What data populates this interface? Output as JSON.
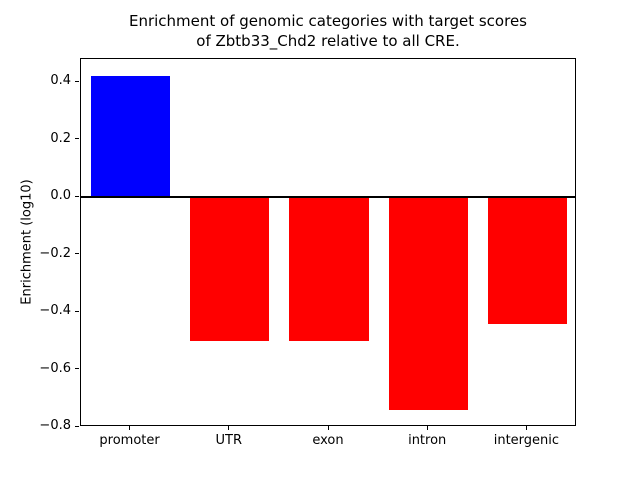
{
  "chart_data": {
    "type": "bar",
    "title": "Enrichment of genomic categories with target scores\nof Zbtb33_Chd2 relative to all CRE.",
    "xlabel": "",
    "ylabel": "Enrichment (log10)",
    "categories": [
      "promoter",
      "UTR",
      "exon",
      "intron",
      "intergenic"
    ],
    "values": [
      0.42,
      -0.5,
      -0.5,
      -0.74,
      -0.44
    ],
    "bar_colors": [
      "#0000ff",
      "#ff0000",
      "#ff0000",
      "#ff0000",
      "#ff0000"
    ],
    "ylim": [
      -0.8,
      0.48
    ],
    "yticks": [
      0.4,
      0.2,
      0.0,
      -0.2,
      -0.4,
      -0.6,
      -0.8
    ],
    "ytick_labels": [
      "0.4",
      "0.2",
      "0.0",
      "−0.2",
      "−0.4",
      "−0.6",
      "−0.8"
    ],
    "zero_line": true,
    "grid": false,
    "legend": "none",
    "background": "#ffffff",
    "bar_width_fraction": 0.8
  }
}
